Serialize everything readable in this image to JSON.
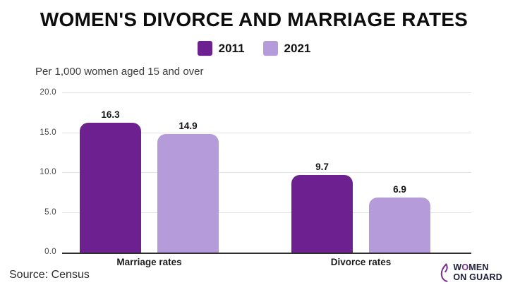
{
  "title": "WOMEN'S DIVORCE AND MARRIAGE RATES",
  "subtitle": "Per 1,000 women aged 15 and over",
  "source": "Source: Census",
  "colors": {
    "series_2011": "#6d2190",
    "series_2021": "#b59bd9",
    "axis": "#2f2f2f",
    "gridline": "#e3e3e3"
  },
  "logo": {
    "word1_w": "W",
    "word1_o": "O",
    "word1_men": "MEN",
    "line2": "ON GUARD"
  },
  "chart_data": {
    "type": "bar",
    "categories": [
      "Marriage rates",
      "Divorce rates"
    ],
    "series": [
      {
        "name": "2011",
        "values": [
          16.3,
          9.7
        ],
        "color": "#6d2190"
      },
      {
        "name": "2021",
        "values": [
          14.9,
          6.9
        ],
        "color": "#b59bd9"
      }
    ],
    "title": "WOMEN'S DIVORCE AND MARRIAGE RATES",
    "ylabel": "Per 1,000 women aged 15 and over",
    "xlabel": "",
    "ylim": [
      0,
      20
    ],
    "yticks": [
      "0.0",
      "5.0",
      "10.0",
      "15.0",
      "20.0"
    ],
    "grid": true,
    "legend_position": "top"
  }
}
